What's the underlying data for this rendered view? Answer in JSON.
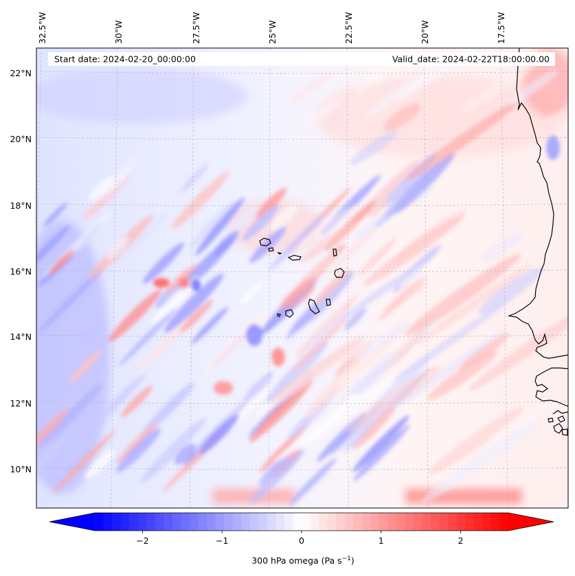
{
  "header": {
    "start_date": "Start date: 2024-02-20_00:00:00",
    "valid_date": "Valid_date: 2024-02-22T18:00:00.00"
  },
  "lon_labels": [
    "32.5°W",
    "30°W",
    "27.5°W",
    "25°W",
    "22.5°W",
    "20°W",
    "17.5°W"
  ],
  "lat_labels": [
    "22°N",
    "20°N",
    "18°N",
    "16°N",
    "14°N",
    "12°N",
    "10°N"
  ],
  "colorbar": {
    "label_main": "300 hPa omega (Pa s",
    "label_exp": "−1",
    "label_close": ")",
    "ticks": [
      -2,
      -1,
      0,
      1,
      2
    ],
    "tick_labels": [
      "−2",
      "−1",
      "0",
      "1",
      "2"
    ],
    "range": [
      -2.6,
      2.6
    ],
    "cmap_low": "#0000ff",
    "cmap_mid": "#ffffff",
    "cmap_high": "#ff0000"
  },
  "colors": {
    "coastline": "#000000",
    "gridline": "#b0b0b0"
  }
}
